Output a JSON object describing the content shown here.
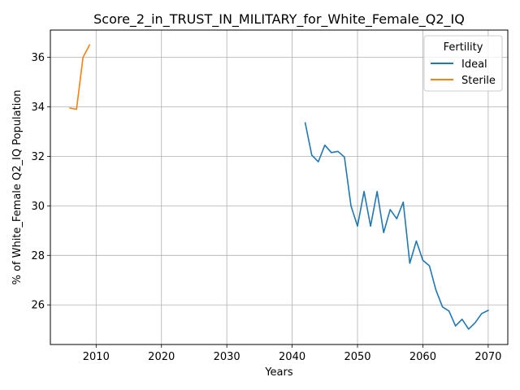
{
  "chart_data": {
    "type": "line",
    "title": "Score_2_in_TRUST_IN_MILITARY_for_White_Female_Q2_IQ",
    "xlabel": "Years",
    "ylabel": "% of White_Female Q2_IQ Population",
    "xlim": [
      2003,
      2073
    ],
    "ylim": [
      24.4,
      37.1
    ],
    "xticks": [
      2010,
      2020,
      2030,
      2040,
      2050,
      2060,
      2070
    ],
    "yticks": [
      26,
      28,
      30,
      32,
      34,
      36
    ],
    "grid": true,
    "legend": {
      "title": "Fertility",
      "placement": "top-right"
    },
    "series": [
      {
        "name": "Ideal",
        "color": "#1f77b4",
        "x": [
          2042,
          2043,
          2044,
          2045,
          2046,
          2047,
          2048,
          2049,
          2050,
          2051,
          2052,
          2053,
          2054,
          2055,
          2056,
          2057,
          2058,
          2059,
          2060,
          2061,
          2062,
          2063,
          2064,
          2065,
          2066,
          2067,
          2068,
          2069,
          2070
        ],
        "y": [
          33.35,
          32.05,
          31.78,
          32.45,
          32.15,
          32.2,
          31.97,
          30.0,
          29.18,
          30.58,
          29.18,
          30.58,
          28.92,
          29.85,
          29.48,
          30.15,
          27.68,
          28.58,
          27.8,
          27.58,
          26.6,
          25.92,
          25.75,
          25.15,
          25.42,
          25.02,
          25.28,
          25.65,
          25.78
        ]
      },
      {
        "name": "Sterile",
        "color": "#ff7f0e",
        "x": [
          2006,
          2007,
          2008,
          2009
        ],
        "y": [
          33.95,
          33.9,
          36.0,
          36.5
        ]
      }
    ]
  }
}
